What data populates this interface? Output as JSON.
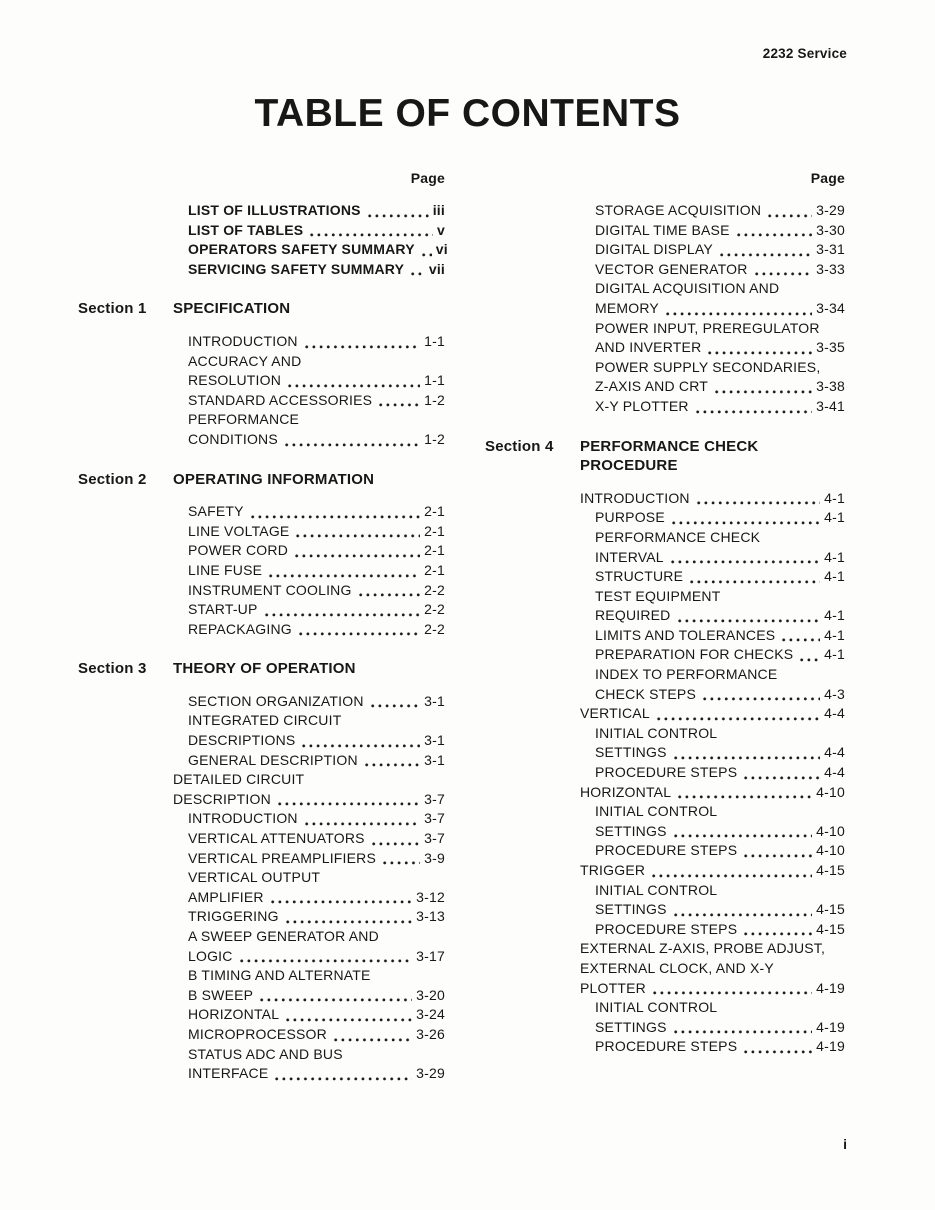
{
  "doc_id": "2232 Service",
  "title": "TABLE OF CONTENTS",
  "page_column_header": "Page",
  "footer_page_number": "i",
  "columns": {
    "left": {
      "blocks": [
        {
          "type": "front",
          "items": [
            {
              "lines": [
                "LIST OF ILLUSTRATIONS"
              ],
              "page": "iii"
            },
            {
              "lines": [
                "LIST OF TABLES"
              ],
              "page": "v"
            },
            {
              "lines": [
                "OPERATORS SAFETY SUMMARY"
              ],
              "page": "vi"
            },
            {
              "lines": [
                "SERVICING SAFETY SUMMARY"
              ],
              "page": "vii"
            }
          ]
        },
        {
          "type": "section",
          "label": "Section 1",
          "title_lines": [
            "SPECIFICATION"
          ]
        },
        {
          "type": "entries",
          "items": [
            {
              "lines": [
                "INTRODUCTION"
              ],
              "page": "1-1",
              "level": 2
            },
            {
              "lines": [
                "ACCURACY AND",
                "RESOLUTION"
              ],
              "page": "1-1",
              "level": 2
            },
            {
              "lines": [
                "STANDARD ACCESSORIES"
              ],
              "page": "1-2",
              "level": 2
            },
            {
              "lines": [
                "PERFORMANCE",
                "CONDITIONS"
              ],
              "page": "1-2",
              "level": 2
            }
          ]
        },
        {
          "type": "section",
          "label": "Section 2",
          "title_lines": [
            "OPERATING INFORMATION"
          ]
        },
        {
          "type": "entries",
          "items": [
            {
              "lines": [
                "SAFETY"
              ],
              "page": "2-1",
              "level": 2
            },
            {
              "lines": [
                "LINE VOLTAGE"
              ],
              "page": "2-1",
              "level": 2
            },
            {
              "lines": [
                "POWER CORD"
              ],
              "page": "2-1",
              "level": 2
            },
            {
              "lines": [
                "LINE FUSE"
              ],
              "page": "2-1",
              "level": 2
            },
            {
              "lines": [
                "INSTRUMENT COOLING"
              ],
              "page": "2-2",
              "level": 2
            },
            {
              "lines": [
                "START-UP"
              ],
              "page": "2-2",
              "level": 2
            },
            {
              "lines": [
                "REPACKAGING"
              ],
              "page": "2-2",
              "level": 2
            }
          ]
        },
        {
          "type": "section",
          "label": "Section 3",
          "title_lines": [
            "THEORY OF OPERATION"
          ]
        },
        {
          "type": "entries",
          "items": [
            {
              "lines": [
                "SECTION ORGANIZATION"
              ],
              "page": "3-1",
              "level": 2
            },
            {
              "lines": [
                "INTEGRATED CIRCUIT",
                "DESCRIPTIONS"
              ],
              "page": "3-1",
              "level": 2
            },
            {
              "lines": [
                "GENERAL DESCRIPTION"
              ],
              "page": "3-1",
              "level": 2
            },
            {
              "lines": [
                "DETAILED CIRCUIT",
                "DESCRIPTION"
              ],
              "page": "3-7",
              "level": 1
            },
            {
              "lines": [
                "INTRODUCTION"
              ],
              "page": "3-7",
              "level": 2
            },
            {
              "lines": [
                "VERTICAL ATTENUATORS"
              ],
              "page": "3-7",
              "level": 2
            },
            {
              "lines": [
                "VERTICAL PREAMPLIFIERS"
              ],
              "page": "3-9",
              "level": 2
            },
            {
              "lines": [
                "VERTICAL OUTPUT",
                "AMPLIFIER"
              ],
              "page": "3-12",
              "level": 2
            },
            {
              "lines": [
                "TRIGGERING"
              ],
              "page": "3-13",
              "level": 2
            },
            {
              "lines": [
                "A SWEEP GENERATOR AND",
                "LOGIC"
              ],
              "page": "3-17",
              "level": 2
            },
            {
              "lines": [
                "B TIMING AND ALTERNATE",
                "B SWEEP"
              ],
              "page": "3-20",
              "level": 2
            },
            {
              "lines": [
                "HORIZONTAL"
              ],
              "page": "3-24",
              "level": 2
            },
            {
              "lines": [
                "MICROPROCESSOR"
              ],
              "page": "3-26",
              "level": 2
            },
            {
              "lines": [
                "STATUS ADC AND BUS",
                "INTERFACE"
              ],
              "page": "3-29",
              "level": 2
            }
          ]
        }
      ]
    },
    "right": {
      "blocks": [
        {
          "type": "entries",
          "items": [
            {
              "lines": [
                "STORAGE ACQUISITION"
              ],
              "page": "3-29",
              "level": 2
            },
            {
              "lines": [
                "DIGITAL TIME BASE"
              ],
              "page": "3-30",
              "level": 2
            },
            {
              "lines": [
                "DIGITAL DISPLAY"
              ],
              "page": "3-31",
              "level": 2
            },
            {
              "lines": [
                "VECTOR GENERATOR"
              ],
              "page": "3-33",
              "level": 2
            },
            {
              "lines": [
                "DIGITAL ACQUISITION AND",
                "MEMORY"
              ],
              "page": "3-34",
              "level": 2
            },
            {
              "lines": [
                "POWER INPUT, PREREGULATOR",
                "AND INVERTER"
              ],
              "page": "3-35",
              "level": 2
            },
            {
              "lines": [
                "POWER SUPPLY SECONDARIES,",
                "Z-AXIS AND CRT"
              ],
              "page": "3-38",
              "level": 2
            },
            {
              "lines": [
                "X-Y PLOTTER"
              ],
              "page": "3-41",
              "level": 2
            }
          ]
        },
        {
          "type": "section",
          "label": "Section 4",
          "title_lines": [
            "PERFORMANCE CHECK",
            "PROCEDURE"
          ]
        },
        {
          "type": "entries",
          "items": [
            {
              "lines": [
                "INTRODUCTION"
              ],
              "page": "4-1",
              "level": 1
            },
            {
              "lines": [
                "PURPOSE"
              ],
              "page": "4-1",
              "level": 2
            },
            {
              "lines": [
                "PERFORMANCE CHECK",
                "INTERVAL"
              ],
              "page": "4-1",
              "level": 2
            },
            {
              "lines": [
                "STRUCTURE"
              ],
              "page": "4-1",
              "level": 2
            },
            {
              "lines": [
                "TEST EQUIPMENT",
                "REQUIRED"
              ],
              "page": "4-1",
              "level": 2
            },
            {
              "lines": [
                "LIMITS AND TOLERANCES"
              ],
              "page": "4-1",
              "level": 2
            },
            {
              "lines": [
                "PREPARATION FOR CHECKS"
              ],
              "page": "4-1",
              "level": 2
            },
            {
              "lines": [
                "INDEX TO PERFORMANCE",
                "CHECK STEPS"
              ],
              "page": "4-3",
              "level": 2
            },
            {
              "lines": [
                "VERTICAL"
              ],
              "page": "4-4",
              "level": 1
            },
            {
              "lines": [
                "INITIAL CONTROL",
                "SETTINGS"
              ],
              "page": "4-4",
              "level": 2
            },
            {
              "lines": [
                "PROCEDURE STEPS"
              ],
              "page": "4-4",
              "level": 2
            },
            {
              "lines": [
                "HORIZONTAL"
              ],
              "page": "4-10",
              "level": 1
            },
            {
              "lines": [
                "INITIAL CONTROL",
                "SETTINGS"
              ],
              "page": "4-10",
              "level": 2
            },
            {
              "lines": [
                "PROCEDURE STEPS"
              ],
              "page": "4-10",
              "level": 2
            },
            {
              "lines": [
                "TRIGGER"
              ],
              "page": "4-15",
              "level": 1
            },
            {
              "lines": [
                "INITIAL CONTROL",
                "SETTINGS"
              ],
              "page": "4-15",
              "level": 2
            },
            {
              "lines": [
                "PROCEDURE STEPS"
              ],
              "page": "4-15",
              "level": 2
            },
            {
              "lines": [
                "EXTERNAL Z-AXIS, PROBE ADJUST,",
                "EXTERNAL CLOCK, AND X-Y",
                "PLOTTER"
              ],
              "page": "4-19",
              "level": 1
            },
            {
              "lines": [
                "INITIAL CONTROL",
                "SETTINGS"
              ],
              "page": "4-19",
              "level": 2
            },
            {
              "lines": [
                "PROCEDURE STEPS"
              ],
              "page": "4-19",
              "level": 2
            }
          ]
        }
      ]
    }
  }
}
